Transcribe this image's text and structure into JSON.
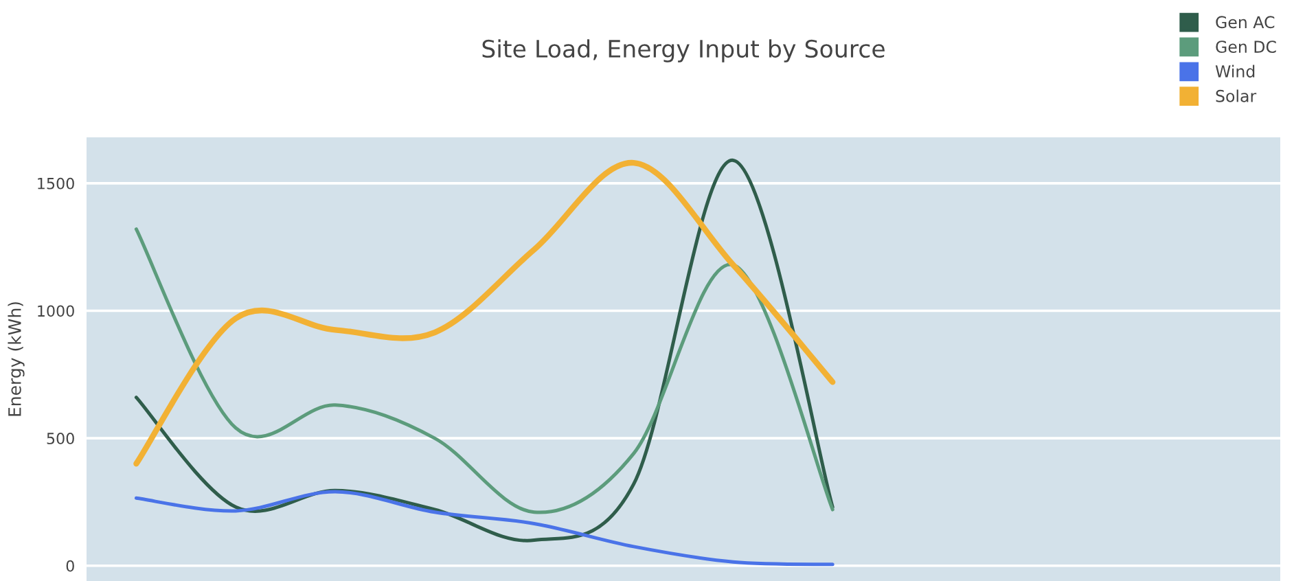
{
  "chart_data": {
    "type": "line",
    "title": "Site Load, Energy Input by Source",
    "ylabel": "Energy (kWh)",
    "categories": [
      null,
      null,
      null,
      null,
      null,
      null,
      null,
      null,
      null,
      null,
      null,
      null
    ],
    "series": [
      {
        "name": "Gen AC",
        "color": "#2f5d4b",
        "values": [
          660,
          230,
          295,
          220,
          100,
          320,
          1590,
          230,
          null,
          null,
          null,
          null
        ]
      },
      {
        "name": "Gen DC",
        "color": "#5c9c7c",
        "values": [
          1320,
          540,
          630,
          500,
          210,
          440,
          1180,
          220,
          null,
          null,
          null,
          null
        ]
      },
      {
        "name": "Wind",
        "color": "#4a73e8",
        "values": [
          265,
          215,
          290,
          210,
          165,
          75,
          15,
          5,
          null,
          null,
          null,
          null
        ]
      },
      {
        "name": "Solar",
        "color": "#f2b134",
        "values": [
          400,
          970,
          925,
          915,
          1240,
          1580,
          1180,
          720,
          null,
          null,
          null,
          null
        ]
      }
    ],
    "ylim": [
      -60,
      1680
    ],
    "yticks": [
      0,
      500,
      1000,
      1500
    ],
    "grid": "y",
    "legend": "top right",
    "tick_labels": "y"
  }
}
